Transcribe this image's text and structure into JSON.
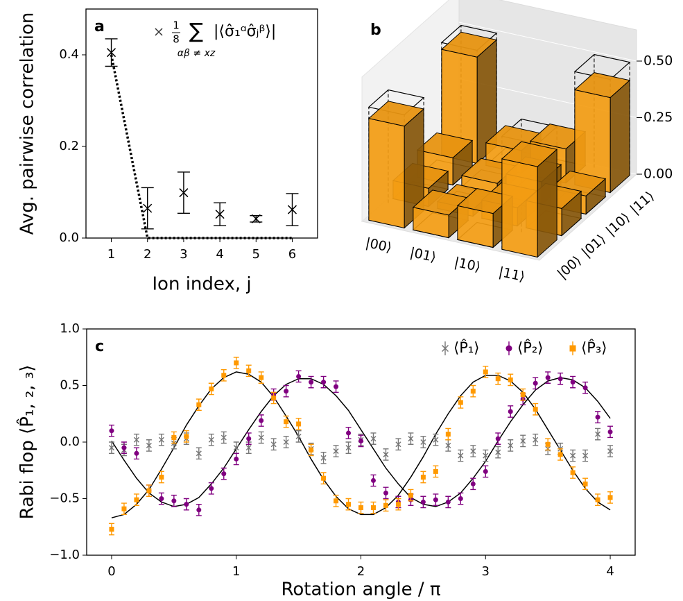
{
  "chart_data": [
    {
      "type": "errorbar",
      "label": "a",
      "xlabel": "Ion index, j",
      "ylabel": "Avg. pairwise correlation",
      "annotation": {
        "numerator": "1",
        "denominator": "8",
        "symbol": "∑",
        "subscript": "αβ ≠ xz",
        "expression": "|⟨σ̂₁ᵅσ̂ⱼᵝ⟩|"
      },
      "x": [
        1,
        2,
        3,
        4,
        5,
        6
      ],
      "series": [
        {
          "color": "#000000",
          "marker": "x",
          "values": [
            0.405,
            0.065,
            0.099,
            0.052,
            0.042,
            0.062
          ],
          "errors": [
            0.03,
            0.045,
            0.045,
            0.025,
            0.007,
            0.035
          ]
        }
      ],
      "line": {
        "x": [
          1,
          2,
          3,
          4,
          5,
          6
        ],
        "values": [
          0.4,
          0,
          0,
          0,
          0,
          0
        ],
        "color": "#000000",
        "style": "dotted"
      },
      "xlim": [
        0.3,
        6.7
      ],
      "ylim": [
        0,
        0.5
      ],
      "xticks": [
        1,
        2,
        3,
        4,
        5,
        6
      ],
      "yticks": [
        {
          "value": 0,
          "label": "0.0"
        },
        {
          "value": 0.2,
          "label": "0.2"
        },
        {
          "value": 0.4,
          "label": "0.4"
        }
      ]
    },
    {
      "type": "bar3d",
      "label": "b",
      "color": "#f39c12",
      "row_labels": [
        "|00⟩",
        "|01⟩",
        "|10⟩",
        "|11⟩"
      ],
      "col_labels": [
        "|00⟩",
        "|01⟩",
        "|10⟩",
        "|11⟩"
      ],
      "values": [
        [
          0.45,
          0.08,
          0.12,
          0.47
        ],
        [
          0.1,
          0.03,
          0.05,
          0.1
        ],
        [
          0.15,
          0.08,
          0.1,
          0.15
        ],
        [
          0.4,
          0.12,
          0.08,
          0.42
        ]
      ],
      "ideal": [
        [
          0.5,
          0,
          0,
          0.5
        ],
        [
          0,
          0,
          0,
          0
        ],
        [
          0,
          0,
          0,
          0
        ],
        [
          0.5,
          0,
          0,
          0.5
        ]
      ],
      "zlim": [
        0,
        0.5
      ],
      "zticks": [
        {
          "value": 0,
          "label": "0.00"
        },
        {
          "value": 0.25,
          "label": "0.25"
        },
        {
          "value": 0.5,
          "label": "0.50"
        }
      ]
    },
    {
      "type": "errorbar",
      "label": "c",
      "xlabel": "Rotation angle / π",
      "ylabel": "Rabi flop ⟨P̂₁, ₂, ₃⟩",
      "legend": "upper right",
      "x": [
        0,
        0.1,
        0.2,
        0.3,
        0.4,
        0.5,
        0.6,
        0.7,
        0.8,
        0.9,
        1,
        1.1,
        1.2,
        1.3,
        1.4,
        1.5,
        1.6,
        1.7,
        1.8,
        1.9,
        2,
        2.1,
        2.2,
        2.3,
        2.4,
        2.5,
        2.6,
        2.7,
        2.8,
        2.9,
        3,
        3.1,
        3.2,
        3.3,
        3.4,
        3.5,
        3.6,
        3.7,
        3.8,
        3.9,
        4
      ],
      "series": [
        {
          "name": "⟨P̂₁⟩",
          "color": "#777777",
          "marker": "x",
          "errors": 0.05,
          "values": [
            -0.05,
            -0.07,
            0.02,
            -0.03,
            0.02,
            -0.01,
            0.03,
            -0.1,
            0.02,
            0.04,
            -0.05,
            -0.05,
            0.04,
            -0.02,
            0,
            0.05,
            -0.06,
            -0.14,
            -0.08,
            -0.05,
            0.02,
            0.03,
            -0.11,
            -0.02,
            0.03,
            0,
            0.02,
            -0.03,
            -0.12,
            -0.08,
            -0.12,
            -0.09,
            -0.03,
            0.01,
            0.02,
            -0.06,
            -0.06,
            -0.12,
            -0.12,
            0.07,
            -0.08
          ]
        },
        {
          "name": "⟨P̂₂⟩",
          "color": "#800080",
          "marker": "o",
          "errors": 0.05,
          "fit_color": "#000000",
          "values": [
            0.1,
            -0.05,
            -0.1,
            -0.43,
            -0.5,
            -0.52,
            -0.55,
            -0.6,
            -0.41,
            -0.28,
            -0.15,
            0.03,
            0.19,
            0.42,
            0.45,
            0.58,
            0.53,
            0.53,
            0.49,
            0.08,
            0.01,
            -0.34,
            -0.45,
            -0.53,
            -0.51,
            -0.53,
            -0.51,
            -0.53,
            -0.5,
            -0.37,
            -0.26,
            0.03,
            0.27,
            0.38,
            0.52,
            0.57,
            0.56,
            0.53,
            0.48,
            0.22,
            0.09
          ],
          "fit": [
            0.01,
            -0.16,
            -0.32,
            -0.45,
            -0.53,
            -0.57,
            -0.55,
            -0.49,
            -0.37,
            -0.23,
            -0.06,
            0.11,
            0.27,
            0.41,
            0.51,
            0.56,
            0.56,
            0.51,
            0.41,
            0.28,
            0.11,
            -0.06,
            -0.23,
            -0.37,
            -0.49,
            -0.55,
            -0.57,
            -0.53,
            -0.45,
            -0.32,
            -0.17,
            0.01,
            0.18,
            0.33,
            0.46,
            0.54,
            0.57,
            0.55,
            0.48,
            0.36,
            0.21
          ]
        },
        {
          "name": "⟨P̂₃⟩",
          "color": "#ff9900",
          "marker": "s",
          "errors": 0.05,
          "fit_color": "#000000",
          "values": [
            -0.77,
            -0.59,
            -0.51,
            -0.43,
            -0.31,
            0.04,
            0.05,
            0.33,
            0.47,
            0.59,
            0.7,
            0.63,
            0.57,
            0.39,
            0.18,
            0.16,
            -0.07,
            -0.32,
            -0.52,
            -0.55,
            -0.58,
            -0.58,
            -0.56,
            -0.55,
            -0.47,
            -0.31,
            -0.26,
            0.07,
            0.35,
            0.45,
            0.62,
            0.56,
            0.55,
            0.42,
            0.29,
            -0.02,
            -0.11,
            -0.27,
            -0.37,
            -0.51,
            -0.49
          ],
          "fit": [
            -0.67,
            -0.64,
            -0.55,
            -0.42,
            -0.24,
            -0.05,
            0.15,
            0.32,
            0.47,
            0.57,
            0.62,
            0.6,
            0.53,
            0.4,
            0.23,
            0.05,
            -0.15,
            -0.33,
            -0.48,
            -0.59,
            -0.64,
            -0.64,
            -0.58,
            -0.47,
            -0.31,
            -0.13,
            0.07,
            0.25,
            0.41,
            0.53,
            0.59,
            0.59,
            0.54,
            0.44,
            0.29,
            0.11,
            -0.07,
            -0.25,
            -0.41,
            -0.53,
            -0.6
          ]
        }
      ],
      "xlim": [
        -0.2,
        4.2
      ],
      "ylim": [
        -1,
        1
      ],
      "xticks": [
        0,
        1,
        2,
        3,
        4
      ],
      "yticks": [
        {
          "value": -1,
          "label": "−1.0"
        },
        {
          "value": -0.5,
          "label": "−0.5"
        },
        {
          "value": 0,
          "label": "0.0"
        },
        {
          "value": 0.5,
          "label": "0.5"
        },
        {
          "value": 1,
          "label": "1.0"
        }
      ]
    }
  ]
}
